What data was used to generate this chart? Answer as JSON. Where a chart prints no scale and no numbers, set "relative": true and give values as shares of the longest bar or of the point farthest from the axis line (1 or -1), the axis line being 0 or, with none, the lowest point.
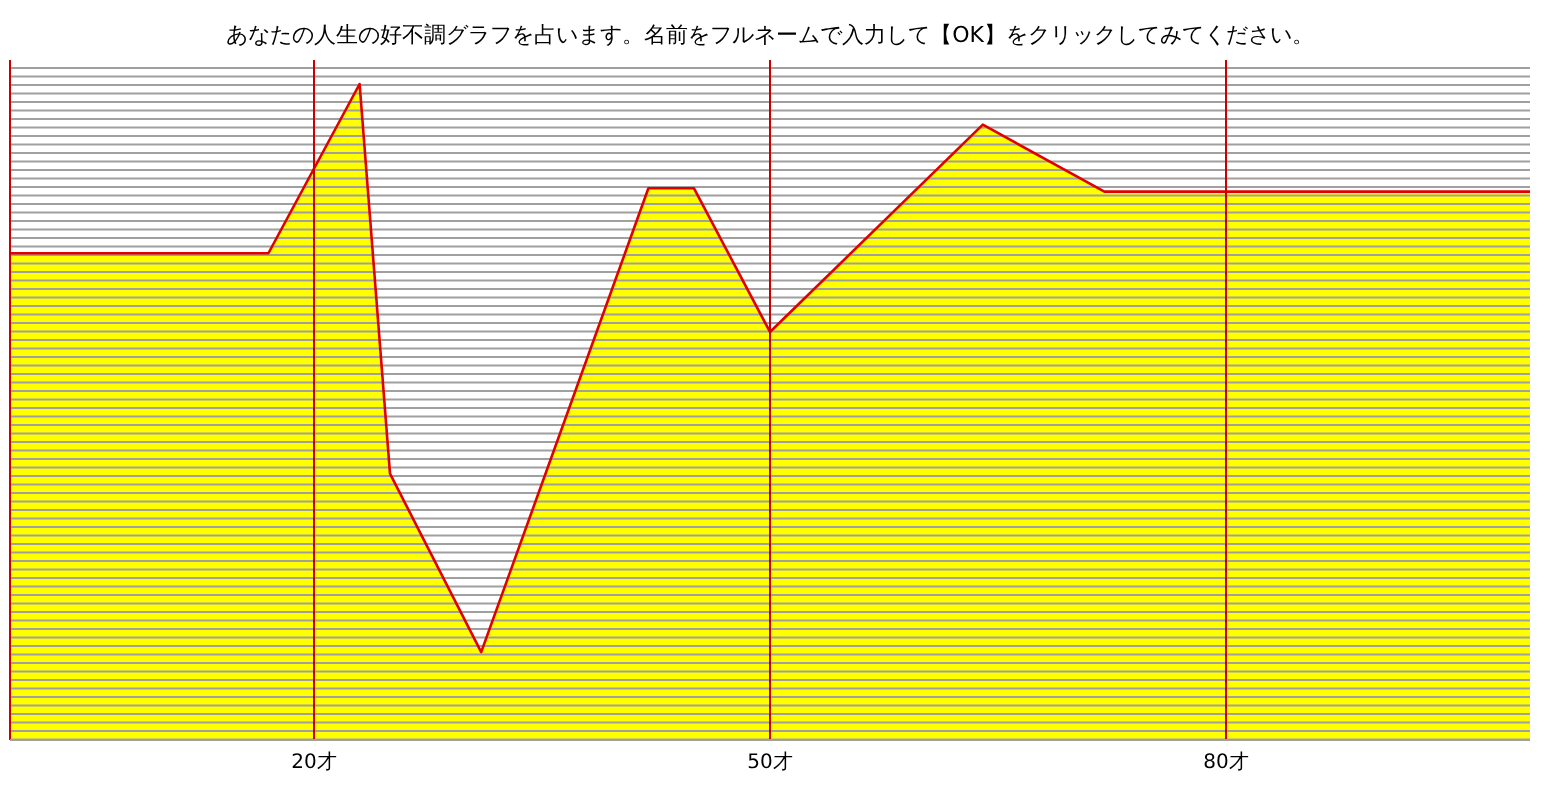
{
  "chart_data": {
    "type": "area",
    "title": "あなたの人生の好不調グラフを占います。名前をフルネームで入力して【OK】をクリックしてみてください。",
    "relative": true,
    "grid": true,
    "color": "#ffff00",
    "x": [
      0,
      17,
      23,
      25,
      31,
      42,
      45,
      50,
      64,
      72,
      100
    ],
    "series": [
      {
        "color": "#e00000",
        "values": [
          0.742,
          0.742,
          1,
          0.406,
          0.134,
          0.841,
          0.841,
          0.622,
          0.938,
          0.836,
          0.836
        ]
      }
    ],
    "xlim": [
      0,
      100
    ],
    "xticks": [
      {
        "value": 20,
        "label": "20才"
      },
      {
        "value": 50,
        "label": "50才"
      },
      {
        "value": 80,
        "label": "80才"
      }
    ]
  }
}
